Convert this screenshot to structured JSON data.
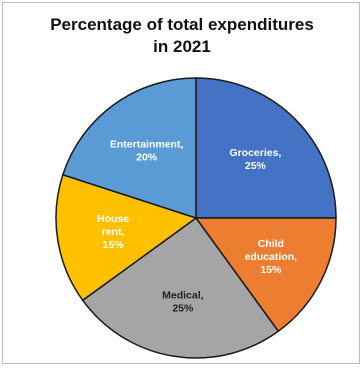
{
  "chart_data": {
    "type": "pie",
    "title_line1": "Percentage of total expenditures",
    "title_line2": "in 2021",
    "slices": [
      {
        "label": "Groceries,",
        "value_label": "25%",
        "value": 25,
        "color": "#4472c4",
        "text_color": "#ffffff"
      },
      {
        "label": "Child education,",
        "value_label": "15%",
        "value": 15,
        "color": "#ed7d31",
        "text_color": "#ffffff"
      },
      {
        "label": "Medical,",
        "value_label": "25%",
        "value": 25,
        "color": "#a5a5a5",
        "text_color": "#1f1f1f"
      },
      {
        "label": "House rent,",
        "value_label": "15%",
        "value": 15,
        "color": "#ffc000",
        "text_color": "#ffffff"
      },
      {
        "label": "Entertainment,",
        "value_label": "20%",
        "value": 20,
        "color": "#5b9bd5",
        "text_color": "#ffffff"
      }
    ]
  }
}
